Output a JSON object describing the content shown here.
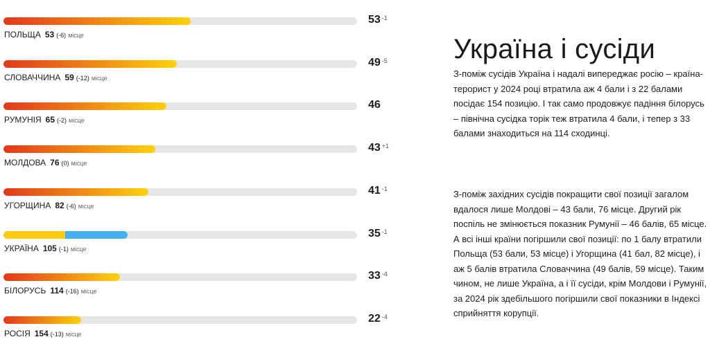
{
  "colors": {
    "bar_gradient_start": "#e2381c",
    "bar_gradient_end": "#ffd10a",
    "track": "#e6e6e6",
    "ukraine_yellow": "#ffcc11",
    "ukraine_blue": "#45b0ee"
  },
  "chart_data": {
    "type": "bar",
    "orientation": "horizontal",
    "xlim": [
      0,
      100
    ],
    "place_word": "місце",
    "categories": [
      "ПОЛЬЩА",
      "СЛОВАЧЧИНА",
      "РУМУНІЯ",
      "МОЛДОВА",
      "УГОРЩИНА",
      "УКРАЇНА",
      "БІЛОРУСЬ",
      "РОСІЯ"
    ],
    "values": [
      53,
      49,
      46,
      43,
      41,
      35,
      33,
      22
    ],
    "rows": [
      {
        "country": "ПОЛЬЩА",
        "score": 53,
        "score_delta": "-1",
        "rank": "53",
        "rank_delta": "(-6)"
      },
      {
        "country": "СЛОВАЧЧИНА",
        "score": 49,
        "score_delta": "-5",
        "rank": "59",
        "rank_delta": "(-12)"
      },
      {
        "country": "РУМУНІЯ",
        "score": 46,
        "score_delta": "",
        "rank": "65",
        "rank_delta": "(-2)"
      },
      {
        "country": "МОЛДОВА",
        "score": 43,
        "score_delta": "+1",
        "rank": "76",
        "rank_delta": "(0)"
      },
      {
        "country": "УГОРЩИНА",
        "score": 41,
        "score_delta": "-1",
        "rank": "82",
        "rank_delta": "(-6)"
      },
      {
        "country": "УКРАЇНА",
        "score": 35,
        "score_delta": "-1",
        "rank": "105",
        "rank_delta": "(-1)",
        "flag_style": true
      },
      {
        "country": "БІЛОРУСЬ",
        "score": 33,
        "score_delta": "-4",
        "rank": "114",
        "rank_delta": "(-16)"
      },
      {
        "country": "РОСІЯ",
        "score": 22,
        "score_delta": "-4",
        "rank": "154",
        "rank_delta": "(-13)"
      }
    ]
  },
  "article": {
    "title": "Україна і сусіди",
    "paragraph_1": "З-поміж сусідів Україна і надалі випереджає росію – країна-терорист у 2024 році втратила аж 4 бали і з 22 балами посідає 154 позицію. І так само продовжує падіння  білорусь – північна сусідка торік теж втратила 4 бали, і тепер з 33 балами знаходиться на 114 сходинці.",
    "paragraph_2": "З-поміж західних сусідів покращити свої позиції загалом вдалося лише Молдові – 43 бали, 76 місце. Другий рік поспіль не змінюється показник Румунії – 46 балів, 65 місце. А всі інші країни погіршили свої позиції: по 1 балу втратили Польща (53 бали, 53 місце) і Угорщина (41 бал, 82 місце), і аж 5 балів втратила Словаччина (49 балів, 59 місце). Таким чином, не лише Україна, а і її сусіди, крім Молдови і Румунії, за 2024 рік здебільшого погіршили свої показники в Індексі сприйняття корупції."
  }
}
